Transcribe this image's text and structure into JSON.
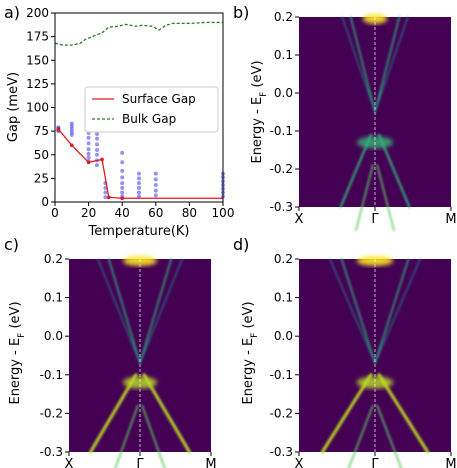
{
  "chart_data": [
    {
      "panel_label": "a)",
      "type": "line",
      "xlabel": "Temperature(K)",
      "ylabel": "Gap (meV)",
      "xlim": [
        0,
        100
      ],
      "ylim": [
        0,
        200
      ],
      "xticks": [
        "0",
        "20",
        "40",
        "60",
        "80",
        "100"
      ],
      "yticks": [
        "0",
        "25",
        "50",
        "75",
        "100",
        "125",
        "150",
        "175",
        "200"
      ],
      "legend_position": "center-right",
      "series": [
        {
          "name": "Surface Gap",
          "style": "solid",
          "color": "#e0191f",
          "x": [
            2,
            10,
            20,
            28,
            32,
            40,
            50,
            60,
            70,
            80,
            90,
            100
          ],
          "y": [
            77,
            60,
            42,
            45,
            5,
            4,
            4,
            4,
            4,
            4,
            4,
            4
          ]
        },
        {
          "name": "Bulk Gap",
          "style": "dashed",
          "color": "#2a7a2a",
          "x": [
            0,
            5,
            10,
            15,
            18,
            22,
            28,
            32,
            38,
            42,
            48,
            52,
            58,
            62,
            66,
            70,
            80,
            90,
            100
          ],
          "y": [
            168,
            166,
            166,
            168,
            172,
            175,
            179,
            185,
            186,
            188,
            186,
            187,
            186,
            182,
            187,
            189,
            189,
            190,
            190
          ]
        },
        {
          "name": "",
          "type": "scatter",
          "color": "#3a3ae8",
          "points": [
            [
              2,
              79
            ],
            [
              2,
              78
            ],
            [
              2,
              77
            ],
            [
              2,
              76
            ],
            [
              2,
              75
            ],
            [
              10,
              83
            ],
            [
              10,
              80
            ],
            [
              10,
              77
            ],
            [
              10,
              74
            ],
            [
              10,
              71
            ],
            [
              20,
              73
            ],
            [
              20,
              68
            ],
            [
              20,
              62
            ],
            [
              20,
              56
            ],
            [
              20,
              51
            ],
            [
              20,
              47
            ],
            [
              20,
              43
            ],
            [
              25,
              72
            ],
            [
              25,
              67
            ],
            [
              25,
              61
            ],
            [
              25,
              55
            ],
            [
              25,
              50
            ],
            [
              25,
              44
            ],
            [
              25,
              39
            ],
            [
              30,
              20
            ],
            [
              30,
              15
            ],
            [
              30,
              10
            ],
            [
              30,
              5
            ],
            [
              40,
              52
            ],
            [
              40,
              42
            ],
            [
              40,
              33
            ],
            [
              40,
              26
            ],
            [
              40,
              20
            ],
            [
              40,
              15
            ],
            [
              40,
              10
            ],
            [
              40,
              6
            ],
            [
              50,
              30
            ],
            [
              50,
              25
            ],
            [
              50,
              20
            ],
            [
              50,
              15
            ],
            [
              50,
              10
            ],
            [
              50,
              6
            ],
            [
              60,
              30
            ],
            [
              60,
              24
            ],
            [
              60,
              18
            ],
            [
              60,
              12
            ],
            [
              60,
              7
            ],
            [
              100,
              30
            ],
            [
              100,
              26
            ],
            [
              100,
              22
            ],
            [
              100,
              18
            ],
            [
              100,
              14
            ],
            [
              100,
              10
            ],
            [
              100,
              6
            ]
          ]
        }
      ]
    },
    {
      "panel_label": "b)",
      "type": "heatmap",
      "ylabel_main": "Energy - E",
      "ylabel_sub": "F",
      "ylabel_end": " (eV)",
      "ylim": [
        -0.3,
        0.2
      ],
      "yticks": [
        "0.2",
        "0.1",
        "0.0",
        "-0.1",
        "-0.2",
        "-0.3"
      ],
      "xticks": [
        "X",
        "Γ",
        "M"
      ]
    },
    {
      "panel_label": "c)",
      "type": "heatmap",
      "ylabel_main": "Energy - E",
      "ylabel_sub": "F",
      "ylabel_end": " (eV)",
      "ylim": [
        -0.3,
        0.2
      ],
      "yticks": [
        "0.2",
        "0.1",
        "0.0",
        "-0.1",
        "-0.2",
        "-0.3"
      ],
      "xticks": [
        "X",
        "Γ",
        "M"
      ]
    },
    {
      "panel_label": "d)",
      "type": "heatmap",
      "ylabel_main": "Energy - E",
      "ylabel_sub": "F",
      "ylabel_end": " (eV)",
      "ylim": [
        -0.3,
        0.2
      ],
      "yticks": [
        "0.2",
        "0.1",
        "0.0",
        "-0.1",
        "-0.2",
        "-0.3"
      ],
      "xticks": [
        "X",
        "Γ",
        "M"
      ]
    }
  ]
}
